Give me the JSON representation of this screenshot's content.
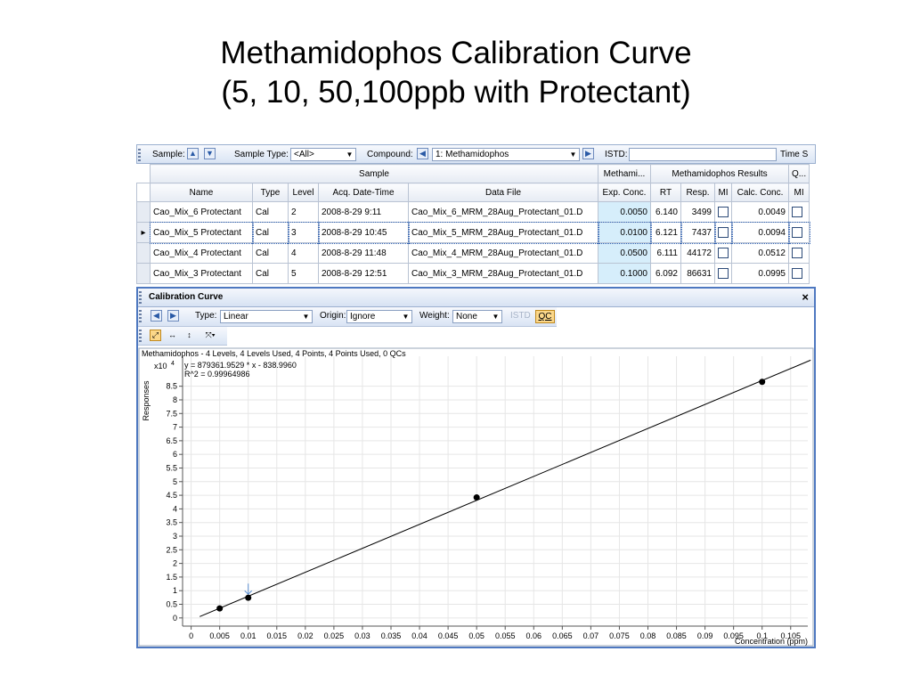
{
  "slide": {
    "title_line1": "Methamidophos Calibration Curve",
    "title_line2": "(5, 10, 50,100ppb with Protectant)"
  },
  "toolbar": {
    "sample_label": "Sample:",
    "sample_type_label": "Sample Type:",
    "sample_type_value": "<All>",
    "compound_label": "Compound:",
    "compound_value": "1: Methamidophos",
    "istd_label": "ISTD:",
    "istd_value": "",
    "time_label": "Time S"
  },
  "table": {
    "group_headers": [
      "Sample",
      "Methami...",
      "Methamidophos Results",
      "Q..."
    ],
    "columns": [
      "Name",
      "Type",
      "Level",
      "Acq. Date-Time",
      "Data File",
      "Exp. Conc.",
      "RT",
      "Resp.",
      "MI",
      "Calc. Conc.",
      "MI"
    ],
    "rows": [
      {
        "name": "Cao_Mix_6 Protectant",
        "type": "Cal",
        "level": "2",
        "acq": "2008-8-29 9:11",
        "file": "Cao_Mix_6_MRM_28Aug_Protectant_01.D",
        "exp": "0.0050",
        "rt": "6.140",
        "resp": "3499",
        "calc": "0.0049",
        "selected": false
      },
      {
        "name": "Cao_Mix_5 Protectant",
        "type": "Cal",
        "level": "3",
        "acq": "2008-8-29 10:45",
        "file": "Cao_Mix_5_MRM_28Aug_Protectant_01.D",
        "exp": "0.0100",
        "rt": "6.121",
        "resp": "7437",
        "calc": "0.0094",
        "selected": true
      },
      {
        "name": "Cao_Mix_4 Protectant",
        "type": "Cal",
        "level": "4",
        "acq": "2008-8-29 11:48",
        "file": "Cao_Mix_4_MRM_28Aug_Protectant_01.D",
        "exp": "0.0500",
        "rt": "6.111",
        "resp": "44172",
        "calc": "0.0512",
        "selected": false
      },
      {
        "name": "Cao_Mix_3 Protectant",
        "type": "Cal",
        "level": "5",
        "acq": "2008-8-29 12:51",
        "file": "Cao_Mix_3_MRM_28Aug_Protectant_01.D",
        "exp": "0.1000",
        "rt": "6.092",
        "resp": "86631",
        "calc": "0.0995",
        "selected": false
      }
    ]
  },
  "panel": {
    "title": "Calibration Curve",
    "close_label": "×",
    "type_label": "Type:",
    "type_value": "Linear",
    "origin_label": "Origin:",
    "origin_value": "Ignore",
    "weight_label": "Weight:",
    "weight_value": "None",
    "istd_label": "ISTD",
    "qc_label": "QC"
  },
  "chart_data": {
    "type": "scatter",
    "title": "Methamidophos - 4 Levels, 4 Levels Used, 4 Points, 4 Points Used, 0 QCs",
    "equation": "y = 879361.9529 * x - 838.9960",
    "r2": "R^2 = 0.99964986",
    "exponent_label": "x10",
    "exponent_power": "4",
    "ylabel": "Responses",
    "xlabel": "Concentration (ppm)",
    "x_ticks": [
      "0",
      "0.005",
      "0.01",
      "0.015",
      "0.02",
      "0.025",
      "0.03",
      "0.035",
      "0.04",
      "0.045",
      "0.05",
      "0.055",
      "0.06",
      "0.065",
      "0.07",
      "0.075",
      "0.08",
      "0.085",
      "0.09",
      "0.095",
      "0.1",
      "0.105"
    ],
    "y_ticks": [
      "0",
      "0.5",
      "1",
      "1.5",
      "2",
      "2.5",
      "3",
      "3.5",
      "4",
      "4.5",
      "5",
      "5.5",
      "6",
      "6.5",
      "7",
      "7.5",
      "8",
      "8.5"
    ],
    "xlim": [
      -0.0015,
      0.108
    ],
    "ylim": [
      -0.3,
      9.6
    ],
    "points": [
      {
        "x": 0.005,
        "y": 0.35
      },
      {
        "x": 0.01,
        "y": 0.74
      },
      {
        "x": 0.05,
        "y": 4.42
      },
      {
        "x": 0.1,
        "y": 8.66
      }
    ],
    "fit_line": {
      "x0": 0.0015,
      "x1": 0.1085,
      "slope": 87.9361953,
      "intercept": -0.0838996
    },
    "marker": {
      "x": 0.01,
      "y": 1.0
    },
    "colors": {
      "points": "#000000",
      "line": "#000000",
      "marker": "#5a8ed0"
    }
  }
}
